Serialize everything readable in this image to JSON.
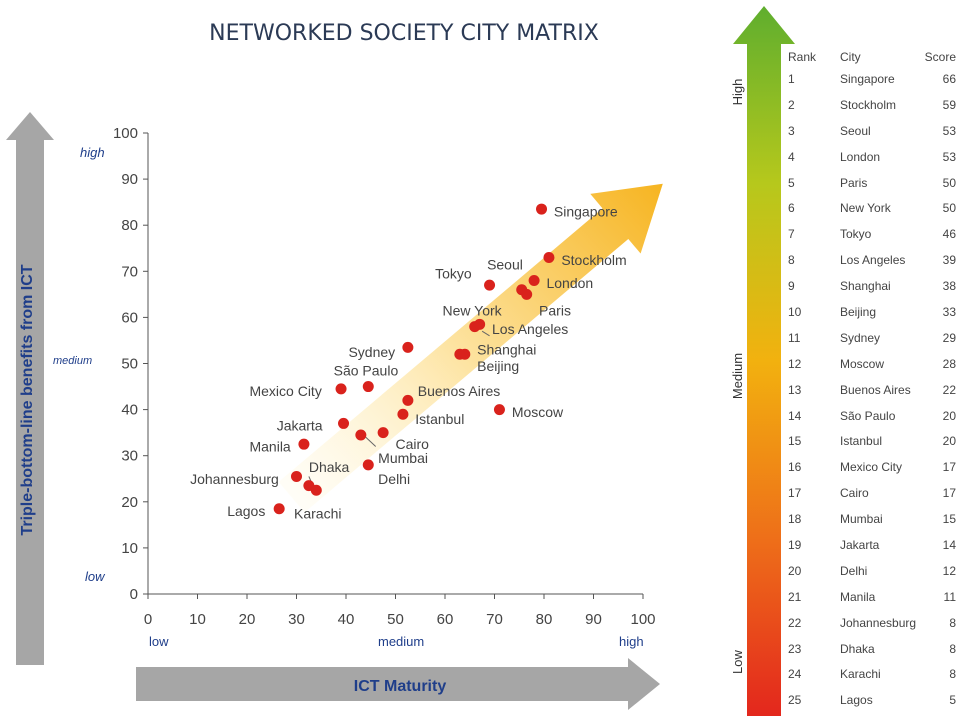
{
  "title": "NETWORKED SOCIETY CITY MATRIX",
  "axes": {
    "y_label": "Triple-bottom-line benefits from ICT",
    "x_label": "ICT Maturity",
    "y_level_high": "high",
    "y_level_medium": "medium",
    "y_level_low": "low",
    "x_level_low": "low",
    "x_level_medium": "medium",
    "x_level_high": "high"
  },
  "chart_data": {
    "type": "scatter",
    "title": "NETWORKED SOCIETY CITY MATRIX",
    "xlabel": "ICT Maturity",
    "ylabel": "Triple-bottom-line benefits from ICT",
    "xlim": [
      0,
      100
    ],
    "ylim": [
      0,
      100
    ],
    "xticks": [
      0,
      10,
      20,
      30,
      40,
      50,
      60,
      70,
      80,
      90,
      100
    ],
    "yticks": [
      0,
      10,
      20,
      30,
      40,
      50,
      60,
      70,
      80,
      90,
      100
    ],
    "grid": false,
    "points": [
      {
        "city": "Singapore",
        "x": 79.5,
        "y": 83.5
      },
      {
        "city": "Stockholm",
        "x": 81,
        "y": 73
      },
      {
        "city": "Tokyo",
        "x": 69,
        "y": 67
      },
      {
        "city": "Seoul",
        "x": 75.5,
        "y": 66
      },
      {
        "city": "London",
        "x": 78,
        "y": 68
      },
      {
        "city": "Paris",
        "x": 76.5,
        "y": 65
      },
      {
        "city": "New York",
        "x": 66,
        "y": 58
      },
      {
        "city": "Los Angeles",
        "x": 67,
        "y": 58.5
      },
      {
        "city": "Shanghai",
        "x": 63,
        "y": 52
      },
      {
        "city": "Beijing",
        "x": 64,
        "y": 52
      },
      {
        "city": "Sydney",
        "x": 52.5,
        "y": 53.5
      },
      {
        "city": "São Paulo",
        "x": 44.5,
        "y": 45
      },
      {
        "city": "Mexico City",
        "x": 39,
        "y": 44.5
      },
      {
        "city": "Buenos Aires",
        "x": 52.5,
        "y": 42
      },
      {
        "city": "Istanbul",
        "x": 51.5,
        "y": 39
      },
      {
        "city": "Moscow",
        "x": 71,
        "y": 40
      },
      {
        "city": "Jakarta",
        "x": 39.5,
        "y": 37
      },
      {
        "city": "Cairo",
        "x": 47.5,
        "y": 35
      },
      {
        "city": "Mumbai",
        "x": 43,
        "y": 34.5
      },
      {
        "city": "Delhi",
        "x": 44.5,
        "y": 28
      },
      {
        "city": "Manila",
        "x": 31.5,
        "y": 32.5
      },
      {
        "city": "Johannesburg",
        "x": 30,
        "y": 25.5
      },
      {
        "city": "Dhaka",
        "x": 32.5,
        "y": 23.5
      },
      {
        "city": "Karachi",
        "x": 34,
        "y": 22.5
      },
      {
        "city": "Lagos",
        "x": 26.5,
        "y": 18.5
      }
    ],
    "labels": [
      {
        "text": "Singapore",
        "x": 82,
        "y": 83,
        "anchor": "start"
      },
      {
        "text": "Stockholm",
        "x": 83.5,
        "y": 72.5,
        "anchor": "start"
      },
      {
        "text": "Tokyo",
        "x": 58,
        "y": 69.5,
        "anchor": "start"
      },
      {
        "text": "Seoul",
        "x": 68.5,
        "y": 71.5,
        "anchor": "start"
      },
      {
        "text": "London",
        "x": 80.5,
        "y": 67.5,
        "anchor": "start"
      },
      {
        "text": "Paris",
        "x": 79,
        "y": 61.5,
        "anchor": "start"
      },
      {
        "text": "New York",
        "x": 59.5,
        "y": 61.5,
        "anchor": "start"
      },
      {
        "text": "Los Angeles",
        "x": 69.5,
        "y": 57.5,
        "anchor": "start"
      },
      {
        "text": "Shanghai",
        "x": 66.5,
        "y": 53,
        "anchor": "start"
      },
      {
        "text": "Beijing",
        "x": 66.5,
        "y": 49.5,
        "anchor": "start"
      },
      {
        "text": "Sydney",
        "x": 40.5,
        "y": 52.5,
        "anchor": "start"
      },
      {
        "text": "São Paulo",
        "x": 37.5,
        "y": 48.5,
        "anchor": "start"
      },
      {
        "text": "Mexico City",
        "x": 20.5,
        "y": 44,
        "anchor": "start"
      },
      {
        "text": "Buenos Aires",
        "x": 54.5,
        "y": 44,
        "anchor": "start"
      },
      {
        "text": "Istanbul",
        "x": 54,
        "y": 38,
        "anchor": "start"
      },
      {
        "text": "Moscow",
        "x": 73.5,
        "y": 39.5,
        "anchor": "start"
      },
      {
        "text": "Jakarta",
        "x": 26,
        "y": 36.5,
        "anchor": "start"
      },
      {
        "text": "Cairo",
        "x": 50,
        "y": 32.5,
        "anchor": "start"
      },
      {
        "text": "Mumbai",
        "x": 46.5,
        "y": 29.5,
        "anchor": "start"
      },
      {
        "text": "Delhi",
        "x": 46.5,
        "y": 25,
        "anchor": "start"
      },
      {
        "text": "Manila",
        "x": 20.5,
        "y": 32,
        "anchor": "start"
      },
      {
        "text": "Johannesburg",
        "x": 8.5,
        "y": 25,
        "anchor": "start"
      },
      {
        "text": "Dhaka",
        "x": 32.5,
        "y": 27.5,
        "anchor": "start"
      },
      {
        "text": "Karachi",
        "x": 29.5,
        "y": 17.5,
        "anchor": "start"
      },
      {
        "text": "Lagos",
        "x": 16,
        "y": 18,
        "anchor": "start"
      }
    ],
    "leaders": [
      {
        "x1": 67.5,
        "y1": 57,
        "x2": 69,
        "y2": 56
      },
      {
        "x1": 44,
        "y1": 34,
        "x2": 46,
        "y2": 32
      },
      {
        "x1": 33.5,
        "y1": 23,
        "x2": 32.5,
        "y2": 25.5
      }
    ],
    "trend_arrow": {
      "from": [
        29,
        21
      ],
      "to": [
        104,
        89
      ]
    },
    "colors": {
      "point": "#d9221c",
      "axis": "#555555",
      "label": "#444444",
      "level": "#1f3e8a",
      "title": "#2b3a55",
      "grey_arrow": "#a6a6a6"
    }
  },
  "ranking": {
    "headers": {
      "rank": "Rank",
      "city": "City",
      "score": "Score"
    },
    "level_high": "High",
    "level_medium": "Medium",
    "level_low": "Low",
    "rows": [
      {
        "rank": "1",
        "city": "Singapore",
        "score": "66"
      },
      {
        "rank": "2",
        "city": "Stockholm",
        "score": "59"
      },
      {
        "rank": "3",
        "city": "Seoul",
        "score": "53"
      },
      {
        "rank": "4",
        "city": "London",
        "score": "53"
      },
      {
        "rank": "5",
        "city": "Paris",
        "score": "50"
      },
      {
        "rank": "6",
        "city": "New York",
        "score": "50"
      },
      {
        "rank": "7",
        "city": "Tokyo",
        "score": "46"
      },
      {
        "rank": "8",
        "city": "Los Angeles",
        "score": "39"
      },
      {
        "rank": "9",
        "city": "Shanghai",
        "score": "38"
      },
      {
        "rank": "10",
        "city": "Beijing",
        "score": "33"
      },
      {
        "rank": "11",
        "city": "Sydney",
        "score": "29"
      },
      {
        "rank": "12",
        "city": "Moscow",
        "score": "28"
      },
      {
        "rank": "13",
        "city": "Buenos Aires",
        "score": "22"
      },
      {
        "rank": "14",
        "city": "São Paulo",
        "score": "20"
      },
      {
        "rank": "15",
        "city": "Istanbul",
        "score": "20"
      },
      {
        "rank": "16",
        "city": "Mexico City",
        "score": "17"
      },
      {
        "rank": "17",
        "city": "Cairo",
        "score": "17"
      },
      {
        "rank": "18",
        "city": "Mumbai",
        "score": "15"
      },
      {
        "rank": "19",
        "city": "Jakarta",
        "score": "14"
      },
      {
        "rank": "20",
        "city": "Delhi",
        "score": "12"
      },
      {
        "rank": "21",
        "city": "Manila",
        "score": "11"
      },
      {
        "rank": "22",
        "city": "Johannesburg",
        "score": "8"
      },
      {
        "rank": "23",
        "city": "Dhaka",
        "score": "8"
      },
      {
        "rank": "24",
        "city": "Karachi",
        "score": "8"
      },
      {
        "rank": "25",
        "city": "Lagos",
        "score": "5"
      }
    ]
  }
}
